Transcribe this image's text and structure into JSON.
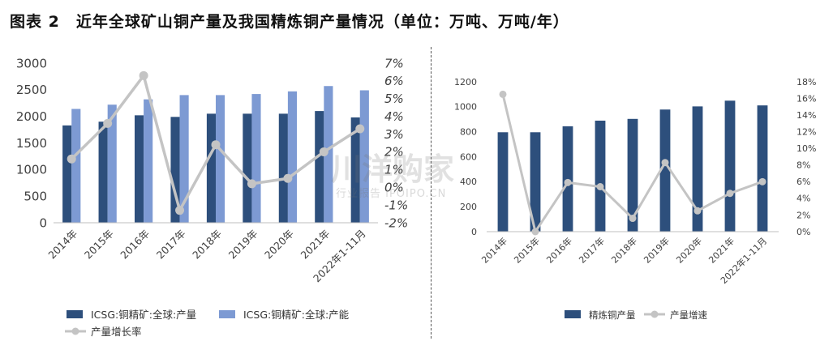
{
  "figure_title": "图表 2　近年全球矿山铜产量及我国精炼铜产量情况（单位：万吨、万吨/年）",
  "watermark": {
    "main": "川洋购家",
    "sub": "行业报告 IPOIPO.CN"
  },
  "colors": {
    "dark_bar": "#2d4f7c",
    "light_bar": "#7d9ad3",
    "line": "#c4c4c4",
    "axis_text": "#404040"
  },
  "chart_data": [
    {
      "type": "bar",
      "categories": [
        "2014年",
        "2015年",
        "2016年",
        "2017年",
        "2018年",
        "2019年",
        "2020年",
        "2021年",
        "2022年1-11月"
      ],
      "series": [
        {
          "name": "ICSG:铜精矿:全球:产量",
          "axis": "left",
          "kind": "bar",
          "color": "#2d4f7c",
          "values": [
            1830,
            1900,
            2020,
            1990,
            2050,
            2050,
            2050,
            2100,
            1980
          ]
        },
        {
          "name": "ICSG:铜精矿:全球:产能",
          "axis": "left",
          "kind": "bar",
          "color": "#7d9ad3",
          "values": [
            2140,
            2220,
            2320,
            2400,
            2400,
            2420,
            2470,
            2570,
            2490
          ]
        },
        {
          "name": "产量增长率",
          "axis": "right",
          "kind": "line",
          "color": "#c4c4c4",
          "values": [
            1.6,
            3.6,
            6.3,
            -1.3,
            2.4,
            0.2,
            0.5,
            2.0,
            3.3
          ]
        }
      ],
      "y_left": {
        "min": 0,
        "max": 3000,
        "step": 500,
        "ticks": [
          "0",
          "500",
          "1000",
          "1500",
          "2000",
          "2500",
          "3000"
        ]
      },
      "y_right": {
        "min": -2,
        "max": 7,
        "step": 1,
        "ticks": [
          "-2%",
          "-1%",
          "0%",
          "1%",
          "2%",
          "3%",
          "4%",
          "5%",
          "6%",
          "7%"
        ]
      },
      "legend_position": "bottom",
      "grid": false
    },
    {
      "type": "bar",
      "categories": [
        "2014年",
        "2015年",
        "2016年",
        "2017年",
        "2018年",
        "2019年",
        "2020年",
        "2021年",
        "2022年1-11月"
      ],
      "series": [
        {
          "name": "精炼铜产量",
          "axis": "left",
          "kind": "bar",
          "color": "#2d4f7c",
          "values": [
            796,
            796,
            844,
            889,
            903,
            978,
            1003,
            1049,
            1011
          ]
        },
        {
          "name": "产量增速",
          "axis": "right",
          "kind": "line",
          "color": "#c4c4c4",
          "values": [
            16.5,
            0.0,
            5.9,
            5.4,
            1.6,
            8.3,
            2.5,
            4.6,
            6.0
          ]
        }
      ],
      "y_left": {
        "min": 0,
        "max": 1200,
        "step": 200,
        "ticks": [
          "0",
          "200",
          "400",
          "600",
          "800",
          "1000",
          "1200"
        ]
      },
      "y_right": {
        "min": 0,
        "max": 18,
        "step": 2,
        "ticks": [
          "0%",
          "2%",
          "4%",
          "6%",
          "8%",
          "10%",
          "12%",
          "14%",
          "16%",
          "18%"
        ]
      },
      "legend_position": "bottom",
      "grid": false
    }
  ]
}
